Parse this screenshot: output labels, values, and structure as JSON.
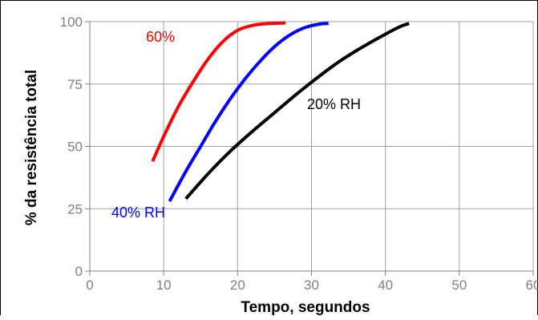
{
  "chart_data": {
    "type": "line",
    "title": "",
    "xlabel": "Tempo, segundos",
    "ylabel": "% da resistência total",
    "xlim": [
      0,
      60
    ],
    "ylim": [
      0,
      100
    ],
    "x_ticks": [
      "0",
      "10",
      "20",
      "30",
      "40",
      "50",
      "60"
    ],
    "y_ticks": [
      "0",
      "25",
      "50",
      "75",
      "100"
    ],
    "grid": true,
    "series": [
      {
        "name": "60%",
        "color": "#ff0000",
        "points": [
          [
            8.5,
            44
          ],
          [
            10,
            54
          ],
          [
            12,
            66
          ],
          [
            14,
            76
          ],
          [
            16,
            85
          ],
          [
            18,
            92
          ],
          [
            20,
            96.5
          ],
          [
            22,
            98.5
          ],
          [
            24,
            99.2
          ],
          [
            26.5,
            99.5
          ]
        ]
      },
      {
        "name": "40% RH",
        "color": "#0000ff",
        "points": [
          [
            10.8,
            28
          ],
          [
            13,
            40
          ],
          [
            15,
            50
          ],
          [
            17,
            60
          ],
          [
            19,
            69
          ],
          [
            21,
            77
          ],
          [
            23,
            84
          ],
          [
            25,
            90
          ],
          [
            27,
            94.5
          ],
          [
            29,
            97.5
          ],
          [
            31,
            99
          ],
          [
            32.3,
            99.3
          ]
        ]
      },
      {
        "name": "20% RH",
        "color": "#000000",
        "points": [
          [
            13,
            29
          ],
          [
            16,
            39
          ],
          [
            19,
            48
          ],
          [
            22,
            56
          ],
          [
            25,
            63.5
          ],
          [
            28,
            71
          ],
          [
            31,
            78
          ],
          [
            34,
            84.5
          ],
          [
            37,
            90
          ],
          [
            40,
            95
          ],
          [
            42,
            98
          ],
          [
            43.2,
            99.3
          ]
        ]
      }
    ]
  }
}
